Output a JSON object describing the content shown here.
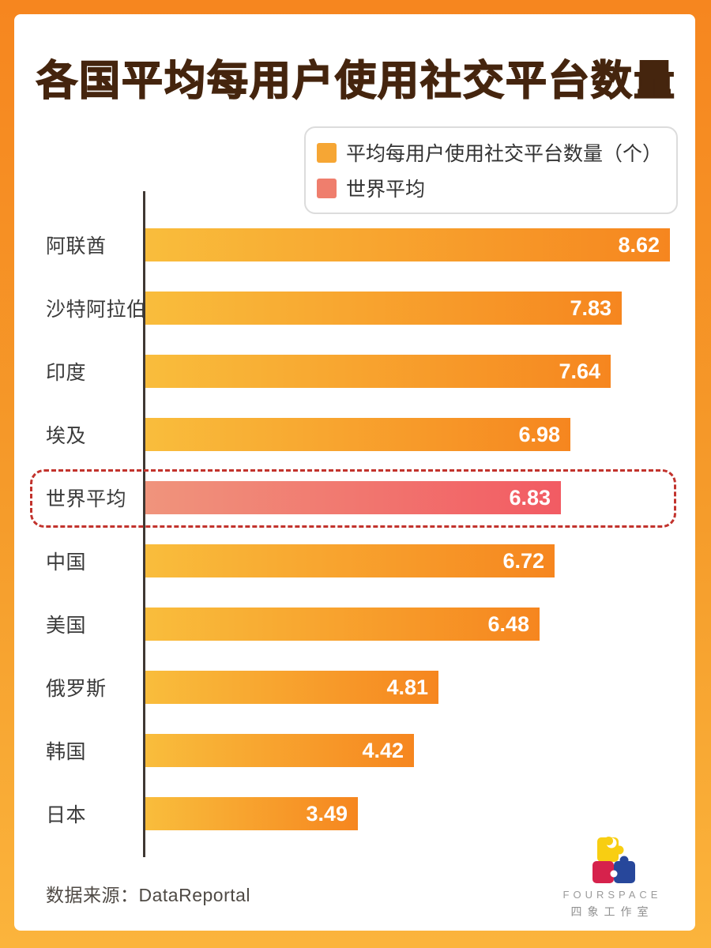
{
  "title": "各国平均每用户使用社交平台数量",
  "legend": {
    "items": [
      {
        "label": "平均每用户使用社交平台数量（个）",
        "color": "#f6a634"
      },
      {
        "label": "世界平均",
        "color": "#ef7e6d"
      }
    ]
  },
  "chart_data": {
    "type": "bar",
    "orientation": "horizontal",
    "title": "各国平均每用户使用社交平台数量",
    "categories": [
      "阿联酋",
      "沙特阿拉伯",
      "印度",
      "埃及",
      "世界平均",
      "中国",
      "美国",
      "俄罗斯",
      "韩国",
      "日本"
    ],
    "values": [
      8.62,
      7.83,
      7.64,
      6.98,
      6.83,
      6.72,
      6.48,
      4.81,
      4.42,
      3.49
    ],
    "highlight_index": 4,
    "highlight_label": "世界平均",
    "legend": [
      "平均每用户使用社交平台数量（个）",
      "世界平均"
    ],
    "legend_position": "top-right",
    "xlim": [
      0,
      8.62
    ],
    "value_labels": true,
    "grid": false,
    "bar_color_gradient": [
      "#f9bd3c",
      "#f6861f"
    ],
    "highlight_color_gradient": [
      "#f0947c",
      "#f25b63"
    ]
  },
  "footer": {
    "source": "数据来源：DataReportal"
  },
  "logo": {
    "name": "FOURSPACE",
    "name_cn": "四象工作室"
  },
  "colors": {
    "frame_gradient_top": "#f6861f",
    "frame_gradient_bottom": "#fbb43c",
    "title_text": "#45250e",
    "axis_line": "#3f3833",
    "highlight_dashed_border": "#c2332d",
    "value_text": "#ffffff",
    "label_text": "#3a3a3a"
  }
}
